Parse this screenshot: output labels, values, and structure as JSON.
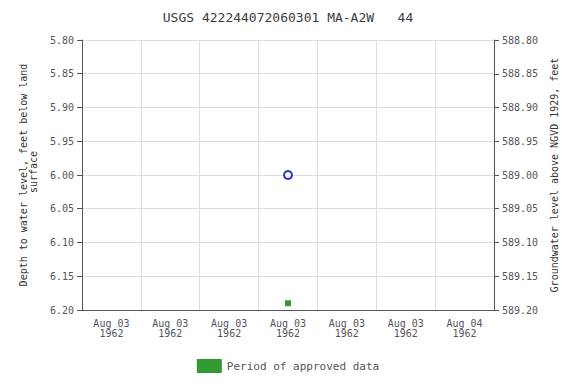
{
  "chart_data": {
    "type": "scatter",
    "title": "USGS 422244072060301 MA-A2W   44",
    "ylabel": "Depth to water level, feet below land\n surface",
    "y2label": "Groundwater level above NGVD 1929, feet",
    "categories": [
      "Aug 03\n1962",
      "Aug 03\n1962",
      "Aug 03\n1962",
      "Aug 03\n1962",
      "Aug 03\n1962",
      "Aug 03\n1962",
      "Aug 04\n1962"
    ],
    "series": [
      {
        "color": "#0000cc",
        "marker": "open_circle",
        "values": [
          null,
          null,
          null,
          6.0,
          null,
          null,
          null
        ]
      },
      {
        "name": "Period of approved data",
        "color": "#008000",
        "marker": "square",
        "values": [
          null,
          null,
          null,
          6.19,
          null,
          null,
          null
        ]
      }
    ],
    "ylim": [
      6.2,
      5.8
    ],
    "yticks": [
      {
        "value": 5.8,
        "label": "5.80"
      },
      5.85,
      {
        "value": 5.9,
        "label": "5.90"
      },
      5.95,
      {
        "value": 6,
        "label": "6.00"
      },
      6.05,
      {
        "value": 6.1,
        "label": "6.10"
      },
      6.15,
      {
        "value": 6.2,
        "label": "6.20"
      }
    ],
    "y2lim": [
      589.2,
      588.8
    ],
    "y2ticks": [
      {
        "value": 589.2,
        "label": "589.20"
      },
      589.15,
      {
        "value": 589.1,
        "label": "589.10"
      },
      589.05,
      {
        "value": 589,
        "label": "589.00"
      },
      588.95,
      {
        "value": 588.9,
        "label": "588.90"
      },
      588.85,
      {
        "value": 588.8,
        "label": "588.80"
      }
    ],
    "grid": true,
    "legend": "bottom"
  }
}
